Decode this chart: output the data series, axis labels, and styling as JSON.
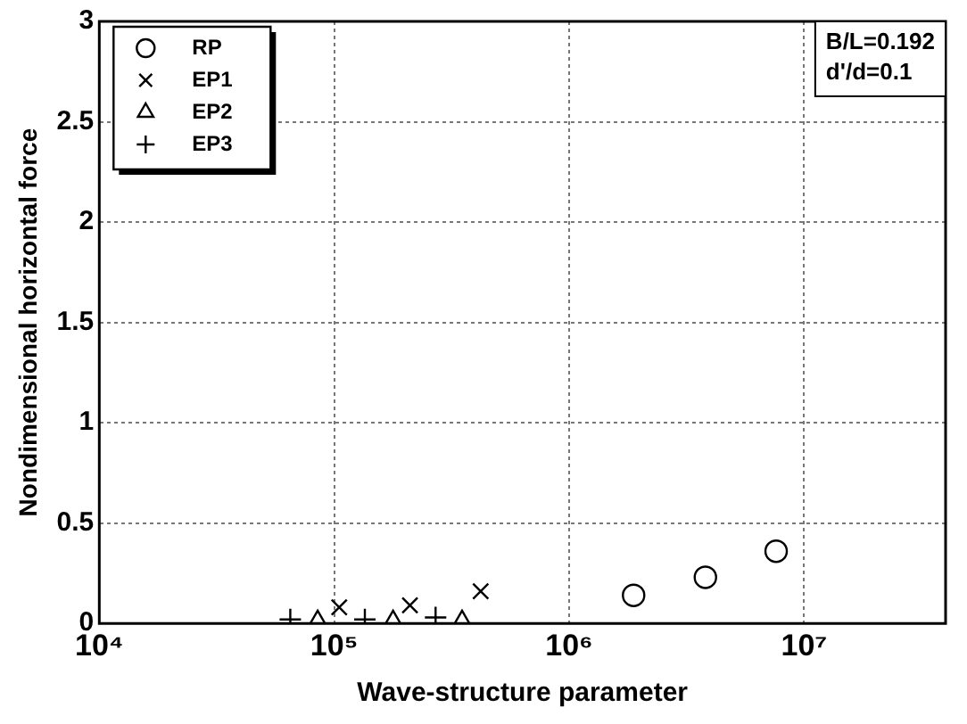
{
  "chart_data": {
    "type": "scatter",
    "xlabel": "Wave-structure parameter",
    "ylabel": "Nondimensional horizontal force",
    "log": "x",
    "xlim": [
      10000,
      40000000
    ],
    "xticks": [
      {
        "value": 10000,
        "label": "10⁴"
      },
      {
        "value": 100000,
        "label": "10⁵"
      },
      {
        "value": 1000000,
        "label": "10⁶"
      },
      {
        "value": 10000000,
        "label": "10⁷"
      }
    ],
    "ylim": [
      0,
      3
    ],
    "yticks": [
      0,
      0.5,
      1,
      1.5,
      2,
      2.5,
      3
    ],
    "grid": true,
    "legend": "top left",
    "series": [
      {
        "name": "RP",
        "color": "#000000",
        "marker": "circle",
        "x": [
          1880000,
          3800000,
          7600000
        ],
        "values": [
          0.14,
          0.23,
          0.36
        ]
      },
      {
        "name": "EP1",
        "color": "#000000",
        "marker": "cross",
        "x": [
          105000,
          210000,
          420000
        ],
        "values": [
          0.08,
          0.09,
          0.16
        ]
      },
      {
        "name": "EP2",
        "color": "#000000",
        "marker": "triangle",
        "x": [
          85000,
          178000,
          350000
        ],
        "values": [
          0.01,
          0.01,
          0.01
        ]
      },
      {
        "name": "EP3",
        "color": "#000000",
        "marker": "plus",
        "x": [
          65000,
          135000,
          270000
        ],
        "values": [
          0.02,
          0.02,
          0.03
        ]
      }
    ],
    "annotations": [
      "B/L=0.192",
      "d'/d=0.1"
    ]
  }
}
